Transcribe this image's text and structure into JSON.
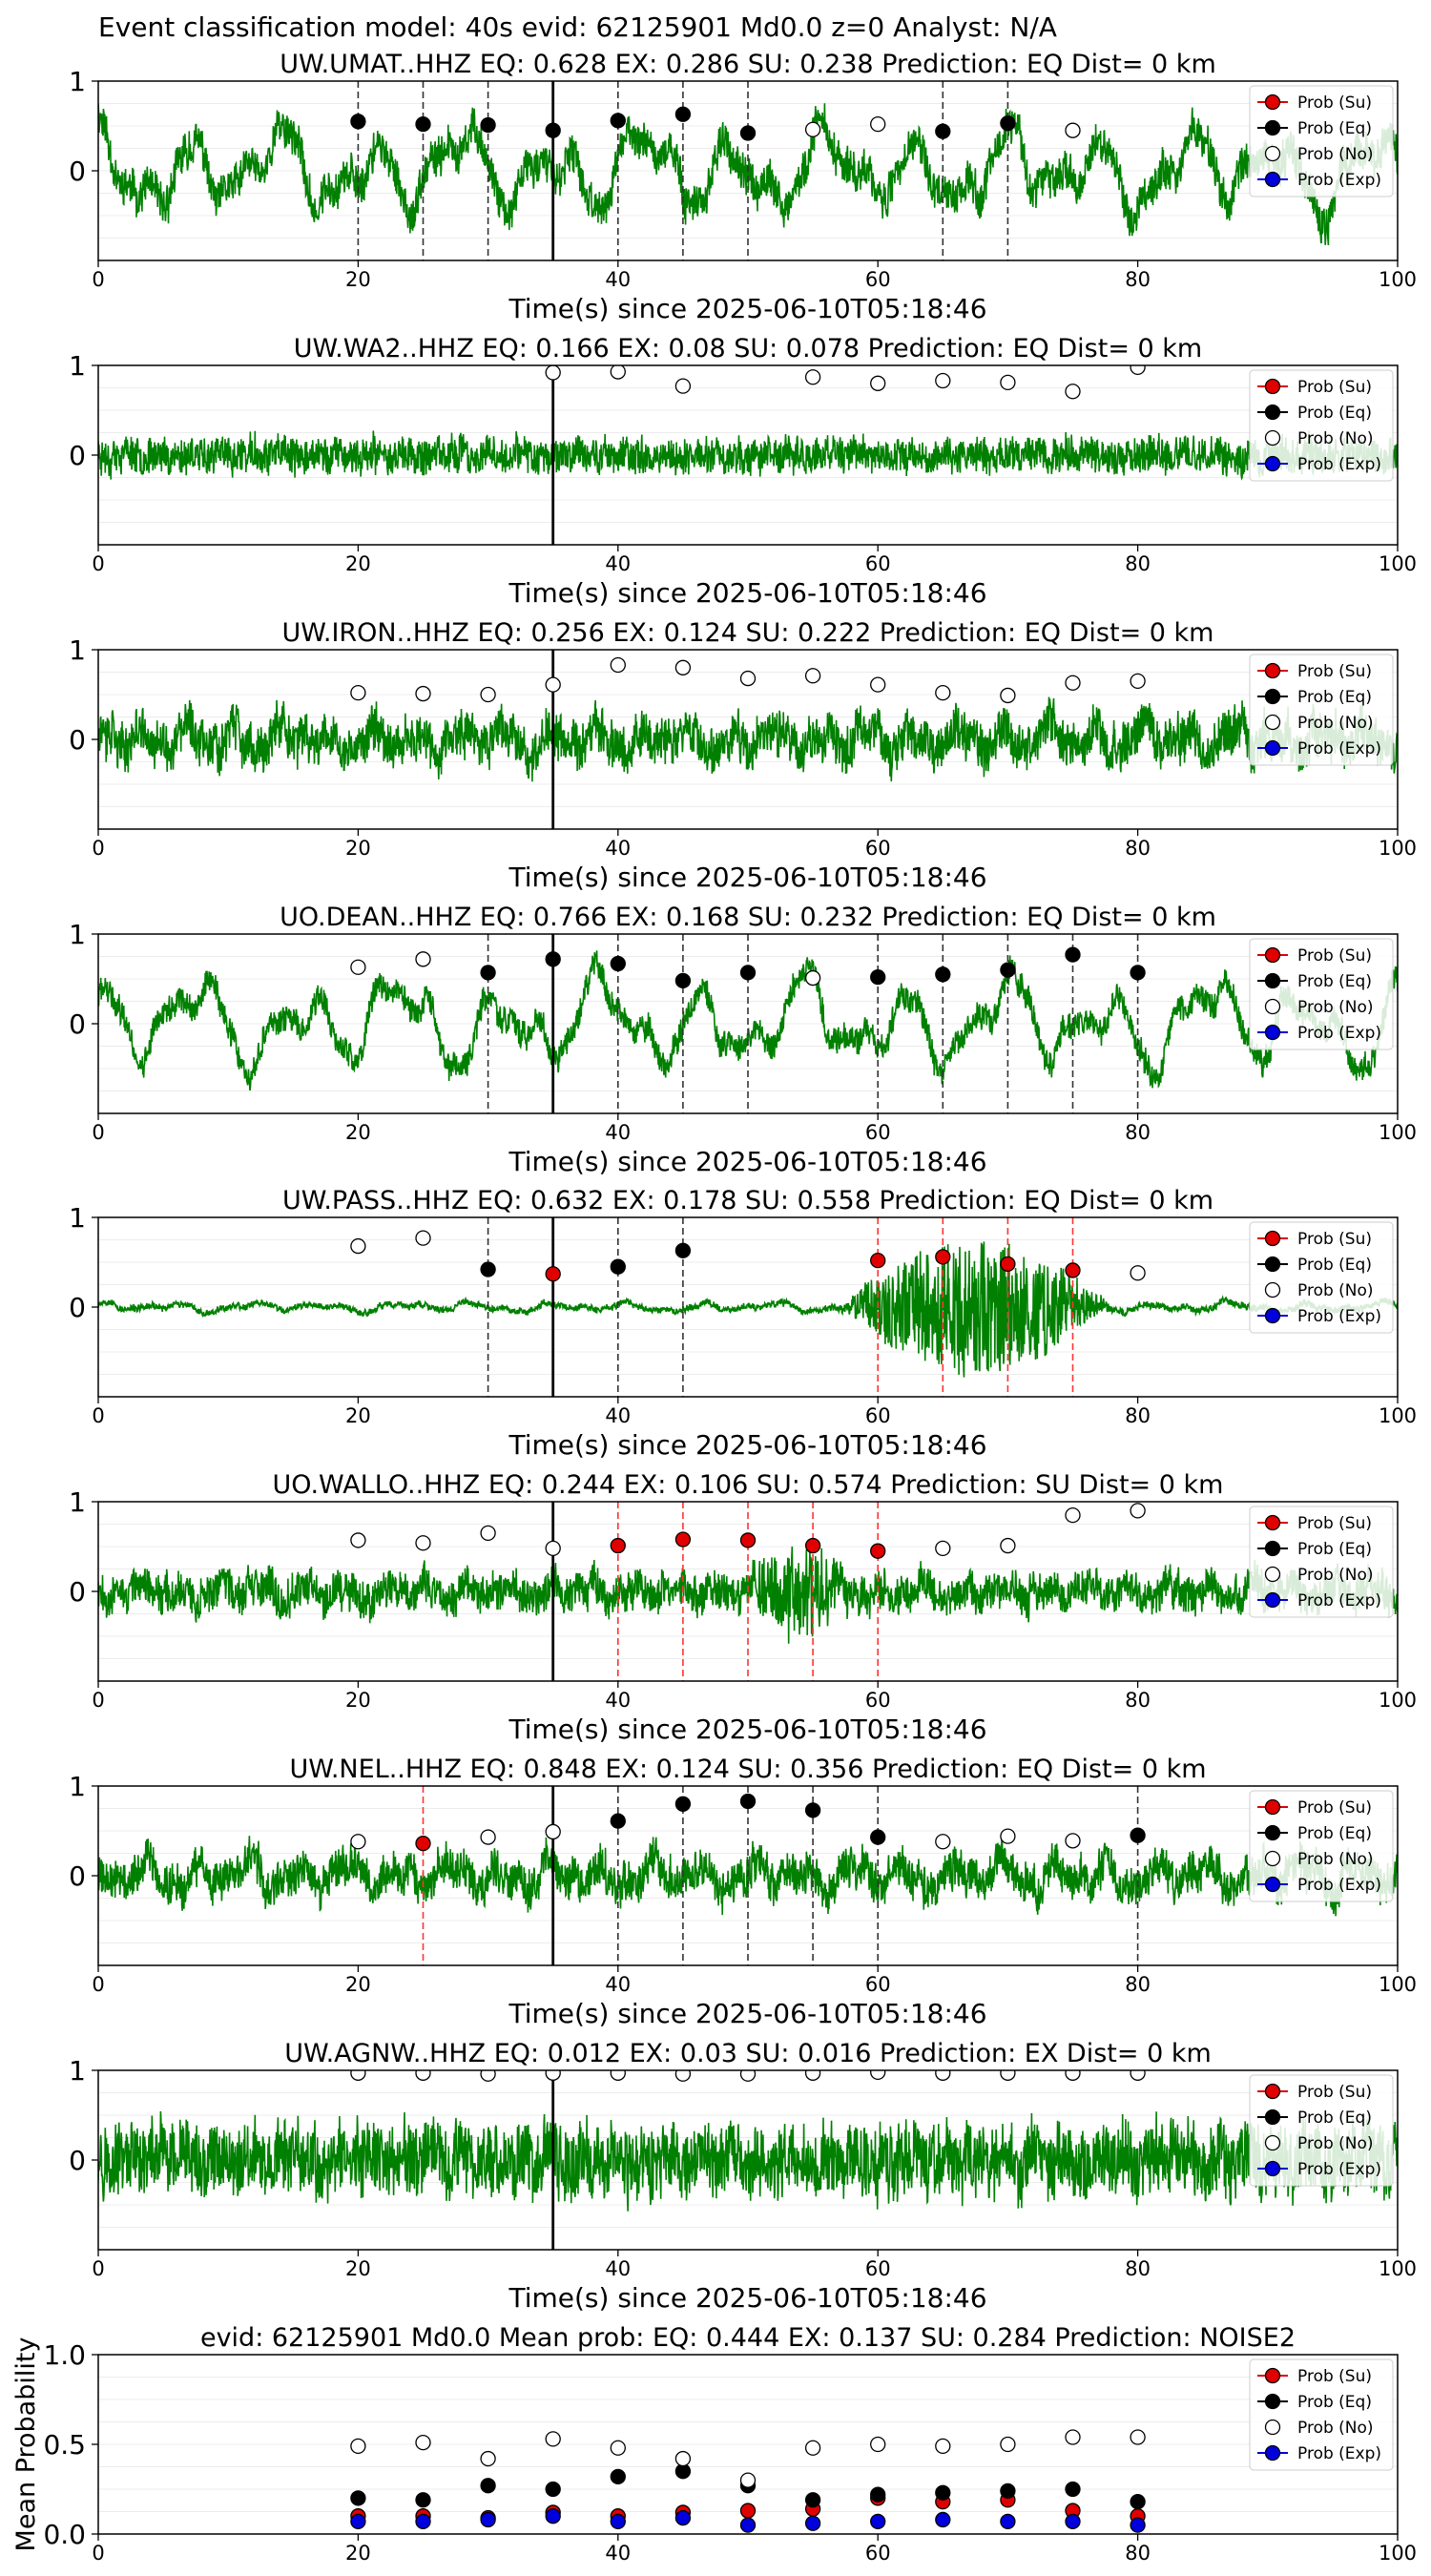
{
  "figure_title": "Event classification model: 40s evid: 62125901 Md0.0 z=0 Analyst: N/A",
  "legend_labels": [
    "Prob (Su)",
    "Prob (Eq)",
    "Prob (No)",
    "Prob (Exp)"
  ],
  "colors": {
    "waveform": "#008000",
    "su": "#e00000",
    "eq": "#000000",
    "no": "#ffffff",
    "exp": "#0000dd"
  },
  "chart_data": [
    {
      "type": "line",
      "title": "UW.UMAT..HHZ   EQ: 0.628  EX: 0.286  SU: 0.238   Prediction: EQ    Dist= 0 km",
      "xlabel": "Time(s) since 2025-06-10T05:18:46",
      "xlim": [
        0,
        100
      ],
      "xticks": [
        "0",
        "20",
        "40",
        "60",
        "80",
        "100"
      ],
      "ylim": [
        -1,
        1
      ],
      "yticks": [
        "1",
        "0"
      ],
      "amp": 0.85,
      "seed": 11,
      "freq": 1.0,
      "smooth": 0.6,
      "pick_time": 35,
      "points": [
        {
          "x": 20,
          "y": 0.55,
          "c": "eq"
        },
        {
          "x": 25,
          "y": 0.52,
          "c": "eq"
        },
        {
          "x": 30,
          "y": 0.51,
          "c": "eq"
        },
        {
          "x": 35,
          "y": 0.45,
          "c": "eq"
        },
        {
          "x": 40,
          "y": 0.56,
          "c": "eq"
        },
        {
          "x": 45,
          "y": 0.63,
          "c": "eq"
        },
        {
          "x": 50,
          "y": 0.42,
          "c": "eq"
        },
        {
          "x": 55,
          "y": 0.46,
          "c": "no"
        },
        {
          "x": 60,
          "y": 0.52,
          "c": "no"
        },
        {
          "x": 65,
          "y": 0.44,
          "c": "eq"
        },
        {
          "x": 70,
          "y": 0.53,
          "c": "eq"
        },
        {
          "x": 75,
          "y": 0.45,
          "c": "no"
        }
      ]
    },
    {
      "type": "line",
      "title": "UW.WA2..HHZ   EQ: 0.166  EX: 0.08  SU: 0.078   Prediction: EQ    Dist= 0 km",
      "xlabel": "Time(s) since 2025-06-10T05:18:46",
      "xlim": [
        0,
        100
      ],
      "xticks": [
        "0",
        "20",
        "40",
        "60",
        "80",
        "100"
      ],
      "ylim": [
        -1,
        1
      ],
      "yticks": [
        "1",
        "0"
      ],
      "amp": 0.35,
      "seed": 23,
      "freq": 3.0,
      "smooth": 0.1,
      "pick_time": 35,
      "points": [
        {
          "x": 35,
          "y": 0.92,
          "c": "no"
        },
        {
          "x": 40,
          "y": 0.93,
          "c": "no"
        },
        {
          "x": 45,
          "y": 0.77,
          "c": "no"
        },
        {
          "x": 55,
          "y": 0.87,
          "c": "no"
        },
        {
          "x": 60,
          "y": 0.8,
          "c": "no"
        },
        {
          "x": 65,
          "y": 0.83,
          "c": "no"
        },
        {
          "x": 70,
          "y": 0.81,
          "c": "no"
        },
        {
          "x": 75,
          "y": 0.71,
          "c": "no"
        },
        {
          "x": 80,
          "y": 0.98,
          "c": "no"
        }
      ]
    },
    {
      "type": "line",
      "title": "UW.IRON..HHZ   EQ: 0.256  EX: 0.124  SU: 0.222   Prediction: EQ    Dist= 0 km",
      "xlabel": "Time(s) since 2025-06-10T05:18:46",
      "xlim": [
        0,
        100
      ],
      "xticks": [
        "0",
        "20",
        "40",
        "60",
        "80",
        "100"
      ],
      "ylim": [
        -1,
        1
      ],
      "yticks": [
        "1",
        "0"
      ],
      "amp": 0.6,
      "seed": 37,
      "freq": 2.0,
      "smooth": 0.3,
      "pick_time": 35,
      "points": [
        {
          "x": 20,
          "y": 0.52,
          "c": "no"
        },
        {
          "x": 25,
          "y": 0.51,
          "c": "no"
        },
        {
          "x": 30,
          "y": 0.5,
          "c": "no"
        },
        {
          "x": 35,
          "y": 0.61,
          "c": "no"
        },
        {
          "x": 40,
          "y": 0.83,
          "c": "no"
        },
        {
          "x": 45,
          "y": 0.8,
          "c": "no"
        },
        {
          "x": 50,
          "y": 0.68,
          "c": "no"
        },
        {
          "x": 55,
          "y": 0.71,
          "c": "no"
        },
        {
          "x": 60,
          "y": 0.61,
          "c": "no"
        },
        {
          "x": 65,
          "y": 0.52,
          "c": "no"
        },
        {
          "x": 70,
          "y": 0.49,
          "c": "no"
        },
        {
          "x": 75,
          "y": 0.63,
          "c": "no"
        },
        {
          "x": 80,
          "y": 0.65,
          "c": "no"
        }
      ]
    },
    {
      "type": "line",
      "title": "UO.DEAN..HHZ   EQ: 0.766  EX: 0.168  SU: 0.232   Prediction: EQ    Dist= 0 km",
      "xlabel": "Time(s) since 2025-06-10T05:18:46",
      "xlim": [
        0,
        100
      ],
      "xticks": [
        "0",
        "20",
        "40",
        "60",
        "80",
        "100"
      ],
      "ylim": [
        -1,
        1
      ],
      "yticks": [
        "1",
        "0"
      ],
      "amp": 0.8,
      "seed": 41,
      "freq": 0.9,
      "smooth": 0.7,
      "pick_time": 35,
      "points": [
        {
          "x": 20,
          "y": 0.63,
          "c": "no"
        },
        {
          "x": 25,
          "y": 0.72,
          "c": "no"
        },
        {
          "x": 30,
          "y": 0.57,
          "c": "eq"
        },
        {
          "x": 35,
          "y": 0.72,
          "c": "eq"
        },
        {
          "x": 40,
          "y": 0.67,
          "c": "eq"
        },
        {
          "x": 45,
          "y": 0.48,
          "c": "eq"
        },
        {
          "x": 50,
          "y": 0.57,
          "c": "eq"
        },
        {
          "x": 55,
          "y": 0.51,
          "c": "no"
        },
        {
          "x": 60,
          "y": 0.52,
          "c": "eq"
        },
        {
          "x": 65,
          "y": 0.55,
          "c": "eq"
        },
        {
          "x": 70,
          "y": 0.6,
          "c": "eq"
        },
        {
          "x": 75,
          "y": 0.77,
          "c": "eq"
        },
        {
          "x": 80,
          "y": 0.57,
          "c": "eq"
        }
      ]
    },
    {
      "type": "line",
      "title": "UW.PASS..HHZ   EQ: 0.632  EX: 0.178  SU: 0.558   Prediction: EQ    Dist= 0 km",
      "xlabel": "Time(s) since 2025-06-10T05:18:46",
      "xlim": [
        0,
        100
      ],
      "xticks": [
        "0",
        "20",
        "40",
        "60",
        "80",
        "100"
      ],
      "ylim": [
        -1,
        1
      ],
      "yticks": [
        "1",
        "0"
      ],
      "amp": 0.12,
      "seed": 53,
      "freq": 1.2,
      "smooth": 0.5,
      "burst": [
        57,
        78,
        0.75
      ],
      "pick_time": 35,
      "points": [
        {
          "x": 20,
          "y": 0.68,
          "c": "no"
        },
        {
          "x": 25,
          "y": 0.77,
          "c": "no"
        },
        {
          "x": 30,
          "y": 0.42,
          "c": "eq"
        },
        {
          "x": 35,
          "y": 0.37,
          "c": "su"
        },
        {
          "x": 40,
          "y": 0.45,
          "c": "eq"
        },
        {
          "x": 45,
          "y": 0.63,
          "c": "eq"
        },
        {
          "x": 60,
          "y": 0.52,
          "c": "su"
        },
        {
          "x": 65,
          "y": 0.56,
          "c": "su"
        },
        {
          "x": 70,
          "y": 0.48,
          "c": "su"
        },
        {
          "x": 75,
          "y": 0.41,
          "c": "su"
        },
        {
          "x": 80,
          "y": 0.38,
          "c": "no"
        }
      ]
    },
    {
      "type": "line",
      "title": "UO.WALLO..HHZ   EQ: 0.244  EX: 0.106  SU: 0.574   Prediction: SU    Dist= 0 km",
      "xlabel": "Time(s) since 2025-06-10T05:18:46",
      "xlim": [
        0,
        100
      ],
      "xticks": [
        "0",
        "20",
        "40",
        "60",
        "80",
        "100"
      ],
      "ylim": [
        -1,
        1
      ],
      "yticks": [
        "1",
        "0"
      ],
      "amp": 0.45,
      "seed": 67,
      "freq": 2.2,
      "smooth": 0.25,
      "burst": [
        50,
        58,
        0.5
      ],
      "pick_time": 35,
      "points": [
        {
          "x": 20,
          "y": 0.57,
          "c": "no"
        },
        {
          "x": 25,
          "y": 0.54,
          "c": "no"
        },
        {
          "x": 30,
          "y": 0.65,
          "c": "no"
        },
        {
          "x": 35,
          "y": 0.48,
          "c": "no"
        },
        {
          "x": 40,
          "y": 0.51,
          "c": "su"
        },
        {
          "x": 45,
          "y": 0.58,
          "c": "su"
        },
        {
          "x": 50,
          "y": 0.57,
          "c": "su"
        },
        {
          "x": 55,
          "y": 0.51,
          "c": "su"
        },
        {
          "x": 60,
          "y": 0.45,
          "c": "su"
        },
        {
          "x": 65,
          "y": 0.48,
          "c": "no"
        },
        {
          "x": 70,
          "y": 0.51,
          "c": "no"
        },
        {
          "x": 75,
          "y": 0.85,
          "c": "no"
        },
        {
          "x": 80,
          "y": 0.9,
          "c": "no"
        }
      ]
    },
    {
      "type": "line",
      "title": "UW.NEL..HHZ   EQ: 0.848  EX: 0.124  SU: 0.356   Prediction: EQ    Dist= 0 km",
      "xlabel": "Time(s) since 2025-06-10T05:18:46",
      "xlim": [
        0,
        100
      ],
      "xticks": [
        "0",
        "20",
        "40",
        "60",
        "80",
        "100"
      ],
      "ylim": [
        -1,
        1
      ],
      "yticks": [
        "1",
        "0"
      ],
      "amp": 0.55,
      "seed": 79,
      "freq": 1.8,
      "smooth": 0.35,
      "pick_time": 35,
      "points": [
        {
          "x": 20,
          "y": 0.38,
          "c": "no"
        },
        {
          "x": 25,
          "y": 0.36,
          "c": "su"
        },
        {
          "x": 30,
          "y": 0.43,
          "c": "no"
        },
        {
          "x": 35,
          "y": 0.49,
          "c": "no"
        },
        {
          "x": 40,
          "y": 0.61,
          "c": "eq"
        },
        {
          "x": 45,
          "y": 0.8,
          "c": "eq"
        },
        {
          "x": 50,
          "y": 0.83,
          "c": "eq"
        },
        {
          "x": 55,
          "y": 0.73,
          "c": "eq"
        },
        {
          "x": 60,
          "y": 0.43,
          "c": "eq"
        },
        {
          "x": 65,
          "y": 0.38,
          "c": "no"
        },
        {
          "x": 70,
          "y": 0.44,
          "c": "no"
        },
        {
          "x": 75,
          "y": 0.39,
          "c": "no"
        },
        {
          "x": 80,
          "y": 0.45,
          "c": "eq"
        }
      ]
    },
    {
      "type": "line",
      "title": "UW.AGNW..HHZ   EQ: 0.012  EX: 0.03  SU: 0.016   Prediction: EX    Dist= 0 km",
      "xlabel": "Time(s) since 2025-06-10T05:18:46",
      "xlim": [
        0,
        100
      ],
      "xticks": [
        "0",
        "20",
        "40",
        "60",
        "80",
        "100"
      ],
      "ylim": [
        -1,
        1
      ],
      "yticks": [
        "1",
        "0"
      ],
      "amp": 0.75,
      "seed": 97,
      "freq": 3.0,
      "smooth": 0.15,
      "pick_time": 35,
      "points": [
        {
          "x": 20,
          "y": 0.97,
          "c": "no"
        },
        {
          "x": 25,
          "y": 0.97,
          "c": "no"
        },
        {
          "x": 30,
          "y": 0.96,
          "c": "no"
        },
        {
          "x": 35,
          "y": 0.97,
          "c": "no"
        },
        {
          "x": 40,
          "y": 0.97,
          "c": "no"
        },
        {
          "x": 45,
          "y": 0.96,
          "c": "no"
        },
        {
          "x": 50,
          "y": 0.96,
          "c": "no"
        },
        {
          "x": 55,
          "y": 0.97,
          "c": "no"
        },
        {
          "x": 60,
          "y": 0.98,
          "c": "no"
        },
        {
          "x": 65,
          "y": 0.97,
          "c": "no"
        },
        {
          "x": 70,
          "y": 0.97,
          "c": "no"
        },
        {
          "x": 75,
          "y": 0.97,
          "c": "no"
        },
        {
          "x": 80,
          "y": 0.97,
          "c": "no"
        }
      ]
    },
    {
      "type": "scatter",
      "title": "evid: 62125901  Md0.0   Mean prob:   EQ: 0.444  EX: 0.137  SU: 0.284   Prediction: NOISE2",
      "ylabel": "Mean Probability",
      "xlim": [
        0,
        100
      ],
      "xticks": [
        "0",
        "20",
        "40",
        "60",
        "80",
        "100"
      ],
      "ylim": [
        0,
        1
      ],
      "yticks": [
        "1.0",
        "0.5",
        "0.0"
      ],
      "x": [
        20,
        25,
        30,
        35,
        40,
        45,
        50,
        55,
        60,
        65,
        70,
        75,
        80
      ],
      "series": [
        {
          "name": "Prob (Su)",
          "key": "su",
          "values": [
            0.1,
            0.1,
            0.09,
            0.12,
            0.1,
            0.12,
            0.13,
            0.14,
            0.2,
            0.18,
            0.19,
            0.13,
            0.1
          ]
        },
        {
          "name": "Prob (Eq)",
          "key": "eq",
          "values": [
            0.2,
            0.19,
            0.27,
            0.25,
            0.32,
            0.35,
            0.27,
            0.19,
            0.22,
            0.23,
            0.24,
            0.25,
            0.18
          ]
        },
        {
          "name": "Prob (No)",
          "key": "no",
          "values": [
            0.49,
            0.51,
            0.42,
            0.53,
            0.48,
            0.42,
            0.3,
            0.48,
            0.5,
            0.49,
            0.5,
            0.54,
            0.54
          ]
        },
        {
          "name": "Prob (Exp)",
          "key": "exp",
          "values": [
            0.07,
            0.07,
            0.08,
            0.1,
            0.07,
            0.09,
            0.05,
            0.06,
            0.07,
            0.08,
            0.07,
            0.07,
            0.05
          ]
        }
      ]
    }
  ]
}
